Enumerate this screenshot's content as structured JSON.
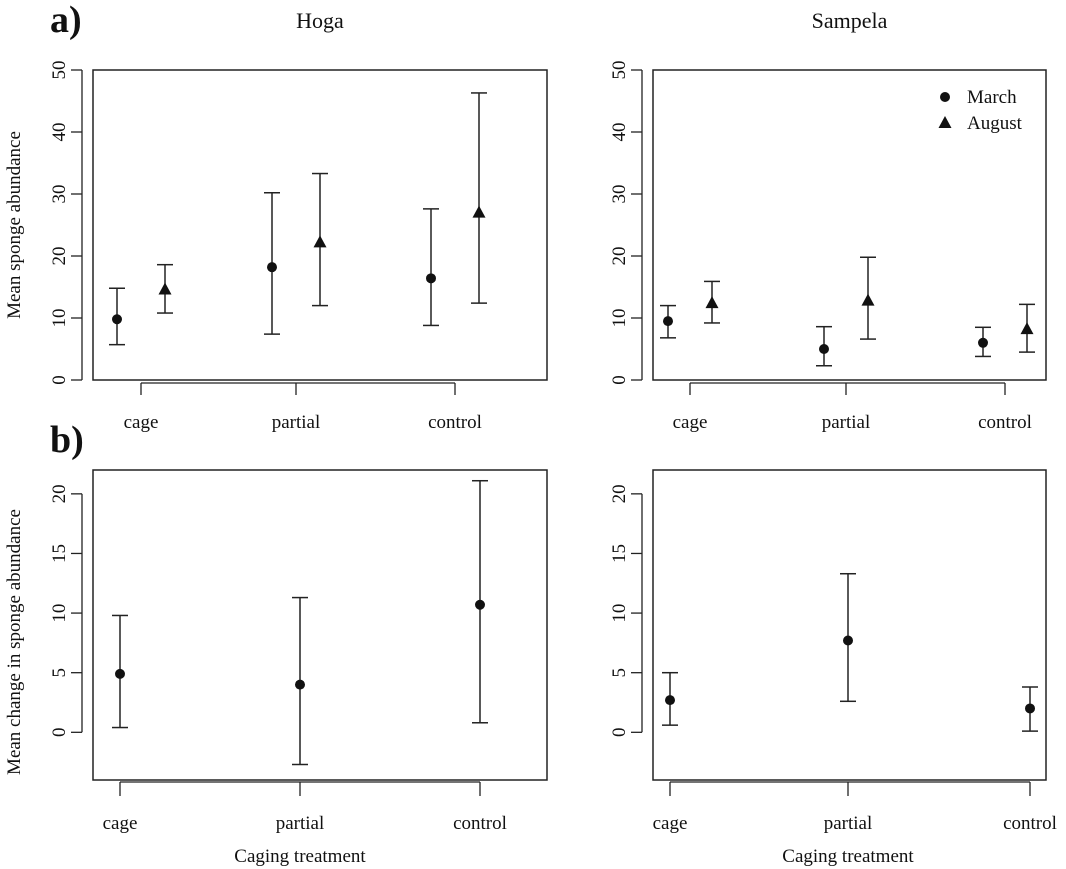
{
  "figure": {
    "panel_labels": [
      "a)",
      "b)"
    ],
    "shared_ylabels": {
      "row_a": "Mean sponge abundance",
      "row_b": "Mean change in sponge abundance"
    },
    "shared_xlabel": "Caging treatment"
  },
  "chart_data": [
    {
      "type": "scatter",
      "panel": "a",
      "title": "Hoga",
      "ylabel": "Mean sponge abundance",
      "xlabel": "",
      "categories": [
        "cage",
        "partial",
        "control"
      ],
      "ylim": [
        0,
        50
      ],
      "yticks": [
        0,
        10,
        20,
        30,
        40,
        50
      ],
      "grid": false,
      "legend": "none",
      "series": [
        {
          "name": "March",
          "marker": "circle",
          "values": [
            9.8,
            18.2,
            16.4
          ],
          "lower": [
            5.7,
            7.4,
            8.8
          ],
          "upper": [
            14.8,
            30.2,
            27.6
          ]
        },
        {
          "name": "August",
          "marker": "triangle",
          "values": [
            14.6,
            22.2,
            27.0
          ],
          "lower": [
            10.8,
            12.0,
            12.4
          ],
          "upper": [
            18.6,
            33.3,
            46.3
          ]
        }
      ]
    },
    {
      "type": "scatter",
      "panel": "a",
      "title": "Sampela",
      "ylabel": "",
      "xlabel": "",
      "categories": [
        "cage",
        "partial",
        "control"
      ],
      "ylim": [
        0,
        50
      ],
      "yticks": [
        0,
        10,
        20,
        30,
        40,
        50
      ],
      "grid": false,
      "legend": "top-right",
      "series": [
        {
          "name": "March",
          "marker": "circle",
          "values": [
            9.5,
            5.0,
            6.0
          ],
          "lower": [
            6.8,
            2.3,
            3.8
          ],
          "upper": [
            12.0,
            8.6,
            8.5
          ]
        },
        {
          "name": "August",
          "marker": "triangle",
          "values": [
            12.4,
            12.8,
            8.2
          ],
          "lower": [
            9.2,
            6.6,
            4.5
          ],
          "upper": [
            15.9,
            19.8,
            12.2
          ]
        }
      ]
    },
    {
      "type": "scatter",
      "panel": "b",
      "title": "",
      "ylabel": "Mean change in sponge abundance",
      "xlabel": "Caging treatment",
      "categories": [
        "cage",
        "partial",
        "control"
      ],
      "ylim": [
        -4,
        22
      ],
      "yticks": [
        0,
        5,
        10,
        15,
        20
      ],
      "grid": false,
      "legend": "none",
      "series": [
        {
          "name": "",
          "marker": "circle",
          "values": [
            4.9,
            4.0,
            10.7
          ],
          "lower": [
            0.4,
            -2.7,
            0.8
          ],
          "upper": [
            9.8,
            11.3,
            21.1
          ]
        }
      ]
    },
    {
      "type": "scatter",
      "panel": "b",
      "title": "",
      "ylabel": "",
      "xlabel": "Caging treatment",
      "categories": [
        "cage",
        "partial",
        "control"
      ],
      "ylim": [
        -4,
        22
      ],
      "yticks": [
        0,
        5,
        10,
        15,
        20
      ],
      "grid": false,
      "legend": "none",
      "series": [
        {
          "name": "",
          "marker": "circle",
          "values": [
            2.7,
            7.7,
            2.0
          ],
          "lower": [
            0.6,
            2.6,
            0.1
          ],
          "upper": [
            5.0,
            13.3,
            3.8
          ]
        }
      ]
    }
  ]
}
